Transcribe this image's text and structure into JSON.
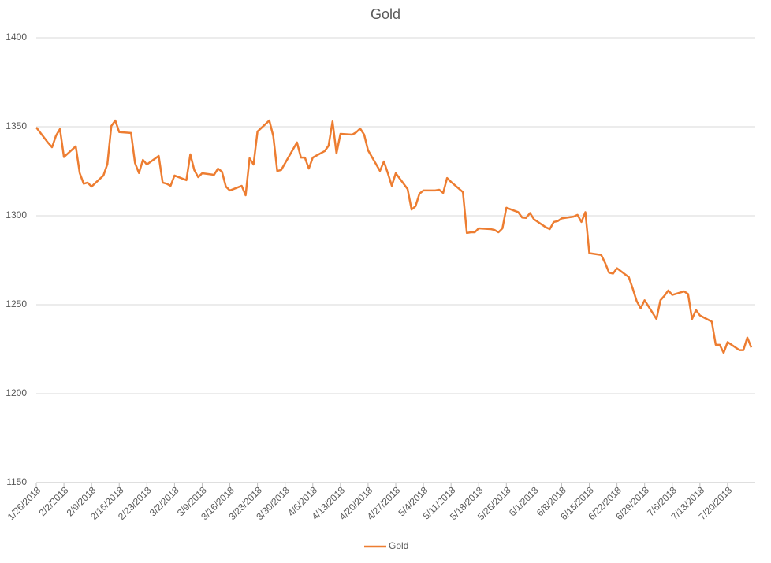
{
  "chart_data": {
    "type": "line",
    "title": "Gold",
    "x": [
      "2018-01-26",
      "2018-01-29",
      "2018-01-30",
      "2018-01-31",
      "2018-02-01",
      "2018-02-02",
      "2018-02-05",
      "2018-02-06",
      "2018-02-07",
      "2018-02-08",
      "2018-02-09",
      "2018-02-12",
      "2018-02-13",
      "2018-02-14",
      "2018-02-15",
      "2018-02-16",
      "2018-02-19",
      "2018-02-20",
      "2018-02-21",
      "2018-02-22",
      "2018-02-23",
      "2018-02-26",
      "2018-02-27",
      "2018-02-28",
      "2018-03-01",
      "2018-03-02",
      "2018-03-05",
      "2018-03-06",
      "2018-03-07",
      "2018-03-08",
      "2018-03-09",
      "2018-03-12",
      "2018-03-13",
      "2018-03-14",
      "2018-03-15",
      "2018-03-16",
      "2018-03-19",
      "2018-03-20",
      "2018-03-21",
      "2018-03-22",
      "2018-03-23",
      "2018-03-26",
      "2018-03-27",
      "2018-03-28",
      "2018-03-29",
      "2018-04-02",
      "2018-04-03",
      "2018-04-04",
      "2018-04-05",
      "2018-04-06",
      "2018-04-09",
      "2018-04-10",
      "2018-04-11",
      "2018-04-12",
      "2018-04-13",
      "2018-04-16",
      "2018-04-17",
      "2018-04-18",
      "2018-04-19",
      "2018-04-20",
      "2018-04-23",
      "2018-04-24",
      "2018-04-25",
      "2018-04-26",
      "2018-04-27",
      "2018-04-30",
      "2018-05-01",
      "2018-05-02",
      "2018-05-03",
      "2018-05-04",
      "2018-05-07",
      "2018-05-08",
      "2018-05-09",
      "2018-05-10",
      "2018-05-11",
      "2018-05-14",
      "2018-05-15",
      "2018-05-16",
      "2018-05-17",
      "2018-05-18",
      "2018-05-21",
      "2018-05-22",
      "2018-05-23",
      "2018-05-24",
      "2018-05-25",
      "2018-05-28",
      "2018-05-29",
      "2018-05-30",
      "2018-05-31",
      "2018-06-01",
      "2018-06-04",
      "2018-06-05",
      "2018-06-06",
      "2018-06-07",
      "2018-06-08",
      "2018-06-11",
      "2018-06-12",
      "2018-06-13",
      "2018-06-14",
      "2018-06-15",
      "2018-06-18",
      "2018-06-19",
      "2018-06-20",
      "2018-06-21",
      "2018-06-22",
      "2018-06-25",
      "2018-06-26",
      "2018-06-27",
      "2018-06-28",
      "2018-06-29",
      "2018-07-02",
      "2018-07-03",
      "2018-07-04",
      "2018-07-05",
      "2018-07-06",
      "2018-07-09",
      "2018-07-10",
      "2018-07-11",
      "2018-07-12",
      "2018-07-13",
      "2018-07-16",
      "2018-07-17",
      "2018-07-18",
      "2018-07-19",
      "2018-07-20",
      "2018-07-23",
      "2018-07-24",
      "2018-07-25",
      "2018-07-26"
    ],
    "series": [
      {
        "name": "Gold",
        "color": "#ed7d31",
        "values": [
          1349.6,
          1341,
          1338.5,
          1345,
          1348.7,
          1333,
          1339,
          1324,
          1318,
          1318.6,
          1316.4,
          1322.6,
          1329,
          1350.4,
          1353.5,
          1347,
          1346.5,
          1329.6,
          1324,
          1331.4,
          1328.8,
          1333.6,
          1318.6,
          1318,
          1316.8,
          1322.6,
          1320,
          1334.5,
          1325.7,
          1321.7,
          1323.9,
          1323,
          1326.5,
          1324.8,
          1316.4,
          1314.2,
          1316.8,
          1311.5,
          1332.3,
          1328.8,
          1347.3,
          1353.5,
          1344.7,
          1325.2,
          1325.7,
          1341.2,
          1332.7,
          1332.7,
          1326.5,
          1332.7,
          1336.3,
          1339.4,
          1353,
          1335,
          1346,
          1345.6,
          1346.9,
          1349,
          1345.6,
          1336.7,
          1325.2,
          1330.5,
          1323.9,
          1316.8,
          1323.9,
          1315,
          1303.5,
          1305.3,
          1312.4,
          1314.2,
          1314.2,
          1314.6,
          1312.8,
          1321.2,
          1319,
          1313.3,
          1290.3,
          1290.7,
          1290.7,
          1292.9,
          1292.5,
          1292,
          1290.7,
          1292.9,
          1304.5,
          1302,
          1299,
          1298.8,
          1301.5,
          1298,
          1293.5,
          1292.5,
          1296.5,
          1297,
          1298.5,
          1299.5,
          1300.5,
          1296.5,
          1302,
          1279,
          1278,
          1273.5,
          1268,
          1267.5,
          1270.5,
          1265.5,
          1259,
          1252,
          1248,
          1252.5,
          1242,
          1252.5,
          1255,
          1258,
          1255.5,
          1257.5,
          1256,
          1242,
          1247,
          1244,
          1240.5,
          1227.5,
          1227.5,
          1223,
          1229,
          1224.5,
          1224.5,
          1231.5,
          1226
        ]
      }
    ],
    "xlim": [
      "2018-01-26",
      "2018-07-27"
    ],
    "xticks": [
      {
        "value": "2018-01-26",
        "label": "1/26/2018"
      },
      {
        "value": "2018-02-02",
        "label": "2/2/2018"
      },
      {
        "value": "2018-02-09",
        "label": "2/9/2018"
      },
      {
        "value": "2018-02-16",
        "label": "2/16/2018"
      },
      {
        "value": "2018-02-23",
        "label": "2/23/2018"
      },
      {
        "value": "2018-03-02",
        "label": "3/2/2018"
      },
      {
        "value": "2018-03-09",
        "label": "3/9/2018"
      },
      {
        "value": "2018-03-16",
        "label": "3/16/2018"
      },
      {
        "value": "2018-03-23",
        "label": "3/23/2018"
      },
      {
        "value": "2018-03-30",
        "label": "3/30/2018"
      },
      {
        "value": "2018-04-06",
        "label": "4/6/2018"
      },
      {
        "value": "2018-04-13",
        "label": "4/13/2018"
      },
      {
        "value": "2018-04-20",
        "label": "4/20/2018"
      },
      {
        "value": "2018-04-27",
        "label": "4/27/2018"
      },
      {
        "value": "2018-05-04",
        "label": "5/4/2018"
      },
      {
        "value": "2018-05-11",
        "label": "5/11/2018"
      },
      {
        "value": "2018-05-18",
        "label": "5/18/2018"
      },
      {
        "value": "2018-05-25",
        "label": "5/25/2018"
      },
      {
        "value": "2018-06-01",
        "label": "6/1/2018"
      },
      {
        "value": "2018-06-08",
        "label": "6/8/2018"
      },
      {
        "value": "2018-06-15",
        "label": "6/15/2018"
      },
      {
        "value": "2018-06-22",
        "label": "6/22/2018"
      },
      {
        "value": "2018-06-29",
        "label": "6/29/2018"
      },
      {
        "value": "2018-07-06",
        "label": "7/6/2018"
      },
      {
        "value": "2018-07-13",
        "label": "7/13/2018"
      },
      {
        "value": "2018-07-20",
        "label": "7/20/2018"
      }
    ],
    "ylim": [
      1150,
      1400
    ],
    "yticks": [
      1150,
      1200,
      1250,
      1300,
      1350,
      1400
    ],
    "grid": true,
    "legend": "bottom"
  }
}
